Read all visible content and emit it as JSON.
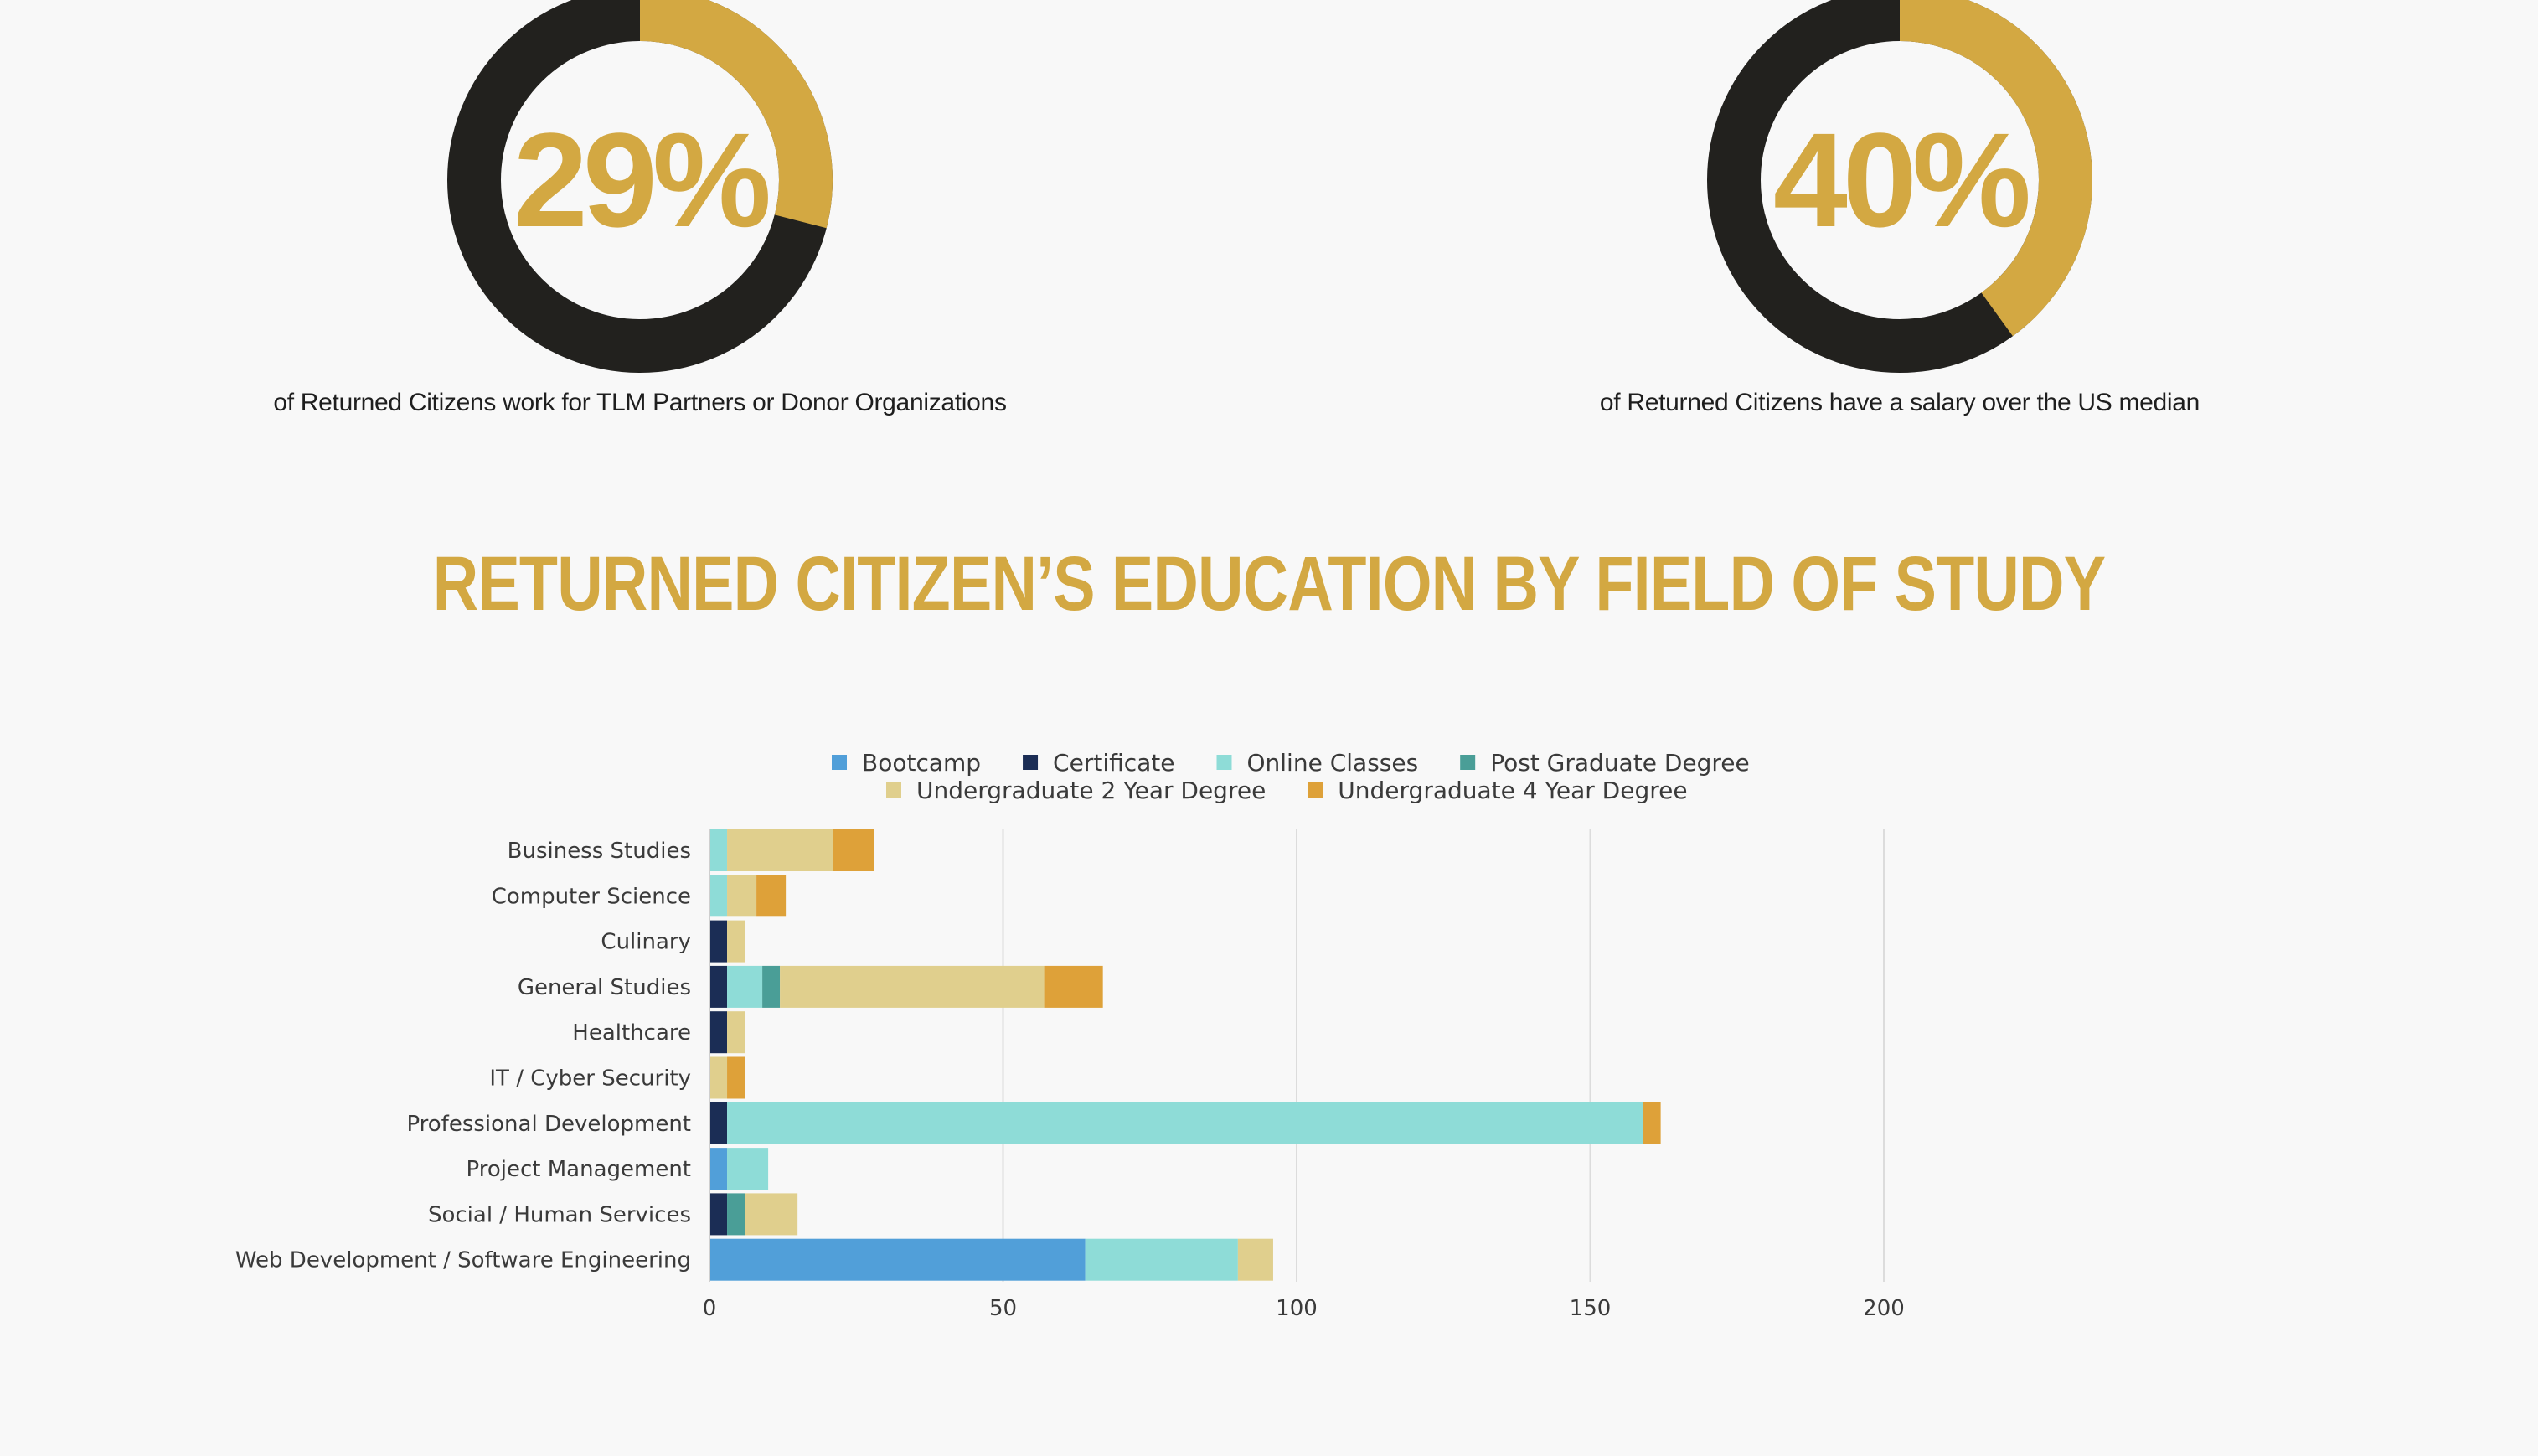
{
  "stats": [
    {
      "percent": "29%",
      "value": 0.29,
      "caption": "of Returned Citizens work for TLM Partners or Donor Organizations"
    },
    {
      "percent": "40%",
      "value": 0.4,
      "caption": "of Returned Citizens have a salary over the US median"
    }
  ],
  "colors": {
    "accent": "#d3a842",
    "donut_dark": "#22211e",
    "Bootcamp": "#519fd9",
    "Certificate": "#1b2d55",
    "Online Classes": "#8edcd7",
    "Post Graduate Degree": "#4a9e97",
    "Undergraduate 2 Year Degree": "#e0cf8d",
    "Undergraduate 4 Year Degree": "#dea139"
  },
  "title": "RETURNED CITIZEN’S EDUCATION BY FIELD OF STUDY",
  "chart_data": {
    "type": "bar",
    "orientation": "horizontal",
    "stacked": true,
    "title": "RETURNED CITIZEN’S EDUCATION BY FIELD OF STUDY",
    "legend_position": "top",
    "grid": true,
    "xlim": [
      0,
      200
    ],
    "x_ticks": [
      "0",
      "50",
      "100",
      "150",
      "200"
    ],
    "x_tick_values": [
      0,
      50,
      100,
      150,
      200
    ],
    "categories": [
      "Business Studies",
      "Computer Science",
      "Culinary",
      "General Studies",
      "Healthcare",
      "IT / Cyber Security",
      "Professional Development",
      "Project Management",
      "Social / Human Services",
      "Web Development / Software Engineering"
    ],
    "series": [
      {
        "name": "Bootcamp",
        "values": [
          0,
          0,
          0,
          0,
          0,
          0,
          0,
          3,
          0,
          64
        ]
      },
      {
        "name": "Certificate",
        "values": [
          0,
          0,
          3,
          3,
          3,
          0,
          3,
          0,
          3,
          0
        ]
      },
      {
        "name": "Online Classes",
        "values": [
          3,
          3,
          0,
          6,
          0,
          0,
          156,
          7,
          0,
          26
        ]
      },
      {
        "name": "Post Graduate Degree",
        "values": [
          0,
          0,
          0,
          3,
          0,
          0,
          0,
          0,
          3,
          0
        ]
      },
      {
        "name": "Undergraduate 2 Year Degree",
        "values": [
          18,
          5,
          3,
          45,
          3,
          3,
          0,
          0,
          9,
          6
        ]
      },
      {
        "name": "Undergraduate 4 Year Degree",
        "values": [
          7,
          5,
          0,
          10,
          0,
          3,
          3,
          0,
          0,
          0
        ]
      }
    ]
  }
}
